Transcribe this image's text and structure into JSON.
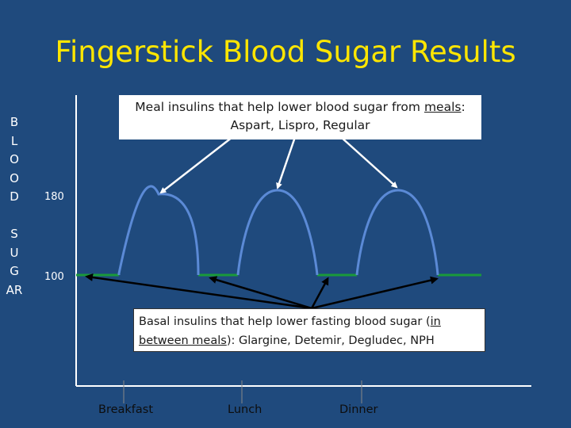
{
  "title": "Fingerstick Blood Sugar Results",
  "y_axis_label_lines": [
    "B",
    "L",
    "O",
    "O",
    "D",
    "",
    "S",
    "U",
    "G",
    "AR"
  ],
  "y_ticks": [
    "180",
    "100"
  ],
  "meal_callout": {
    "line1_prefix": "Meal insulins that help lower blood sugar from ",
    "line1_emph": "meals",
    "line1_suffix": ":",
    "line2": "Aspart, Lispro, Regular"
  },
  "basal_callout": {
    "line1_prefix": "Basal insulins that help lower fasting blood sugar (",
    "line1_emph": "in",
    "line2_emph": "between meals",
    "line2_suffix": "):  Glargine, Detemir, Degludec, NPH"
  },
  "x_labels": [
    "Breakfast",
    "Lunch",
    "Dinner"
  ],
  "colors": {
    "background": "#1f4a7d",
    "title": "#ffe600",
    "curve": "#5b8ad6",
    "baseline": "#1a9a3a",
    "arrow": "#ffffff",
    "axis": "#ffffff"
  },
  "chart_data": {
    "type": "line",
    "baseline_value": 100,
    "peak_value": 180,
    "meals": [
      "Breakfast",
      "Lunch",
      "Dinner"
    ]
  }
}
